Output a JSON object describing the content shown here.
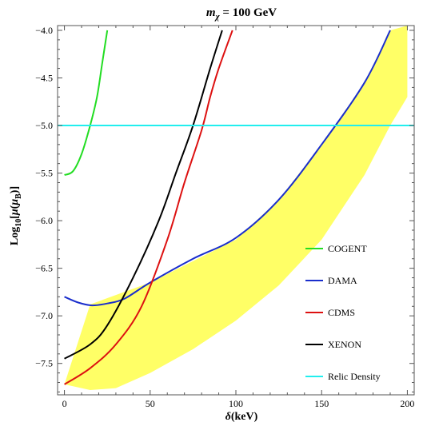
{
  "chart_data": {
    "type": "line",
    "title": "m_χ = 100 GeV",
    "title_parts": {
      "lhs": "m",
      "sub": "χ",
      "rhs": " = 100 GeV"
    },
    "xlabel": "δ(keV)",
    "xlabel_parts": {
      "sym": "δ",
      "rest": "(keV)"
    },
    "ylabel": "Log10[μ(μB)]",
    "ylabel_parts": {
      "a": "Log",
      "sub1": "10",
      "b": "[",
      "c": "μ",
      "d": "(",
      "e": "μ",
      "sub2": "B",
      "f": ")]"
    },
    "xlim": [
      -4,
      204
    ],
    "ylim": [
      -7.83,
      -3.95
    ],
    "x_ticks": [
      0,
      50,
      100,
      150,
      200
    ],
    "x_tick_labels": [
      "0",
      "50",
      "100",
      "150",
      "200"
    ],
    "y_ticks": [
      -4.0,
      -4.5,
      -5.0,
      -5.5,
      -6.0,
      -6.5,
      -7.0,
      -7.5
    ],
    "y_tick_labels": [
      "−4.0",
      "−4.5",
      "−5.0",
      "−5.5",
      "−6.0",
      "−6.5",
      "−7.0",
      "−7.5"
    ],
    "grid": false,
    "legend_position": "bottom-right",
    "band": {
      "color": "#ffff66",
      "upper": [
        [
          15,
          -6.88
        ],
        [
          50,
          -6.65
        ],
        [
          100,
          -6.2
        ],
        [
          125,
          -5.78
        ],
        [
          150,
          -5.2
        ],
        [
          175,
          -4.55
        ],
        [
          190,
          -4.0
        ],
        [
          200,
          -3.95
        ]
      ],
      "lower": [
        [
          0,
          -7.72
        ],
        [
          15,
          -7.78
        ],
        [
          30,
          -7.76
        ],
        [
          50,
          -7.6
        ],
        [
          75,
          -7.35
        ],
        [
          100,
          -7.05
        ],
        [
          125,
          -6.68
        ],
        [
          150,
          -6.2
        ],
        [
          175,
          -5.52
        ],
        [
          190,
          -5.0
        ],
        [
          200,
          -4.7
        ]
      ]
    },
    "series": [
      {
        "name": "COGENT",
        "color": "#22dd22",
        "points": [
          [
            0,
            -5.52
          ],
          [
            5,
            -5.48
          ],
          [
            10,
            -5.3
          ],
          [
            15,
            -5.0
          ],
          [
            19,
            -4.7
          ],
          [
            22,
            -4.35
          ],
          [
            25,
            -4.0
          ]
        ]
      },
      {
        "name": "DAMA",
        "color": "#1a2ecc",
        "points": [
          [
            0,
            -6.8
          ],
          [
            8,
            -6.86
          ],
          [
            16,
            -6.89
          ],
          [
            25,
            -6.87
          ],
          [
            35,
            -6.82
          ],
          [
            50,
            -6.65
          ],
          [
            75,
            -6.4
          ],
          [
            100,
            -6.18
          ],
          [
            125,
            -5.78
          ],
          [
            150,
            -5.2
          ],
          [
            175,
            -4.55
          ],
          [
            190,
            -4.0
          ]
        ]
      },
      {
        "name": "CDMS",
        "color": "#dd1111",
        "points": [
          [
            0,
            -7.72
          ],
          [
            15,
            -7.55
          ],
          [
            30,
            -7.3
          ],
          [
            45,
            -6.9
          ],
          [
            60,
            -6.2
          ],
          [
            70,
            -5.6
          ],
          [
            80,
            -5.05
          ],
          [
            85,
            -4.7
          ],
          [
            90,
            -4.4
          ],
          [
            98,
            -4.0
          ]
        ]
      },
      {
        "name": "XENON",
        "color": "#000000",
        "points": [
          [
            0,
            -7.45
          ],
          [
            15,
            -7.3
          ],
          [
            25,
            -7.1
          ],
          [
            40,
            -6.6
          ],
          [
            55,
            -6.0
          ],
          [
            65,
            -5.5
          ],
          [
            75,
            -5.0
          ],
          [
            85,
            -4.4
          ],
          [
            92,
            -4.0
          ]
        ]
      },
      {
        "name": "Relic Density",
        "color": "#22eeee",
        "points": [
          [
            -4,
            -5.0
          ],
          [
            204,
            -5.0
          ]
        ]
      }
    ]
  }
}
